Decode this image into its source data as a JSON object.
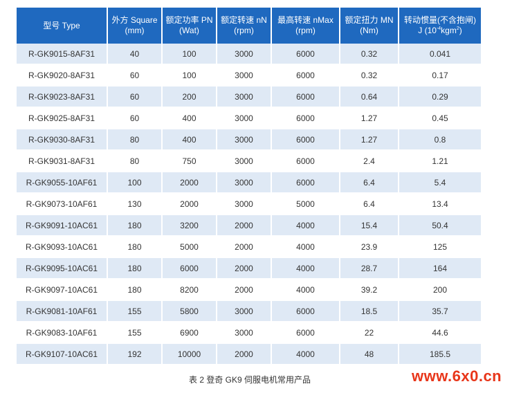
{
  "table": {
    "headers": [
      {
        "line1": "型号 Type",
        "line2": ""
      },
      {
        "line1": "外方 Square",
        "line2": "(mm)"
      },
      {
        "line1": "额定功率 PN",
        "line2": "(Wat)"
      },
      {
        "line1": "额定转速 nN",
        "line2": "(rpm)"
      },
      {
        "line1": "最高转速 nMax",
        "line2": "(rpm)"
      },
      {
        "line1": "额定扭力 MN",
        "line2": "(Nm)"
      },
      {
        "line1": "转动惯量(不含抱闸)",
        "line2_pre": "J (10",
        "line2_sup1": "-4",
        "line2_mid": "kgm",
        "line2_sup2": "2",
        "line2_post": ")"
      }
    ],
    "rows": [
      [
        "R-GK9015-8AF31",
        "40",
        "100",
        "3000",
        "6000",
        "0.32",
        "0.041"
      ],
      [
        "R-GK9020-8AF31",
        "60",
        "100",
        "3000",
        "6000",
        "0.32",
        "0.17"
      ],
      [
        "R-GK9023-8AF31",
        "60",
        "200",
        "3000",
        "6000",
        "0.64",
        "0.29"
      ],
      [
        "R-GK9025-8AF31",
        "60",
        "400",
        "3000",
        "6000",
        "1.27",
        "0.45"
      ],
      [
        "R-GK9030-8AF31",
        "80",
        "400",
        "3000",
        "6000",
        "1.27",
        "0.8"
      ],
      [
        "R-GK9031-8AF31",
        "80",
        "750",
        "3000",
        "6000",
        "2.4",
        "1.21"
      ],
      [
        "R-GK9055-10AF61",
        "100",
        "2000",
        "3000",
        "6000",
        "6.4",
        "5.4"
      ],
      [
        "R-GK9073-10AF61",
        "130",
        "2000",
        "3000",
        "5000",
        "6.4",
        "13.4"
      ],
      [
        "R-GK9091-10AC61",
        "180",
        "3200",
        "2000",
        "4000",
        "15.4",
        "50.4"
      ],
      [
        "R-GK9093-10AC61",
        "180",
        "5000",
        "2000",
        "4000",
        "23.9",
        "125"
      ],
      [
        "R-GK9095-10AC61",
        "180",
        "6000",
        "2000",
        "4000",
        "28.7",
        "164"
      ],
      [
        "R-GK9097-10AC61",
        "180",
        "8200",
        "2000",
        "4000",
        "39.2",
        "200"
      ],
      [
        "R-GK9081-10AF61",
        "155",
        "5800",
        "3000",
        "6000",
        "18.5",
        "35.7"
      ],
      [
        "R-GK9083-10AF61",
        "155",
        "6900",
        "3000",
        "6000",
        "22",
        "44.6"
      ],
      [
        "R-GK9107-10AC61",
        "192",
        "10000",
        "2000",
        "4000",
        "48",
        "185.5"
      ]
    ]
  },
  "caption": "表 2 登奇 GK9 伺服电机常用产品",
  "watermark": "www.6x0.cn",
  "colors": {
    "header_bg": "#1f69bf",
    "row_alt_bg": "#dfe9f5",
    "watermark": "#e8361a"
  }
}
